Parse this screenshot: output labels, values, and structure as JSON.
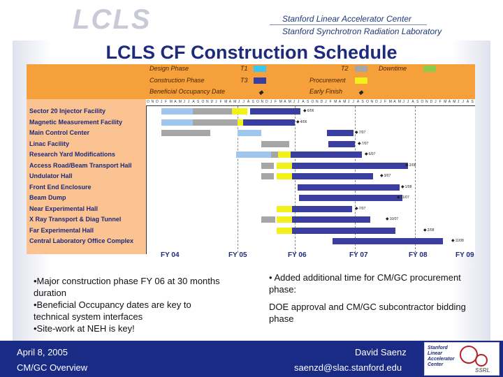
{
  "header": {
    "logo_text": "LCLS",
    "lab_line1": "Stanford Linear Accelerator Center",
    "lab_line2": "Stanford Synchrotron Radiation Laboratory"
  },
  "title": "LCLS CF Construction Schedule",
  "legend": {
    "design_phase": "Design Phase",
    "construction_phase": "Construction Phase",
    "beneficial_occupancy": "Beneficial Occupancy Date",
    "t1": "T1",
    "t3": "T3",
    "t2": "T2",
    "procurement": "Procurement",
    "early_finish": "Early Finish",
    "downtime": "Downtime",
    "colors": {
      "t1": "#36c8f0",
      "t3": "#3a3ea0",
      "t2": "#a6a6a6",
      "procurement": "#f2f21a",
      "downtime": "#8ccc4a",
      "design": "#9ec6ee",
      "construction": "#3a3ea0"
    }
  },
  "tasks": [
    "Sector 20 Injector Facility",
    "Magnetic Measurement Facility",
    "Main Control Center",
    "Linac Facility",
    "Research Yard Modifications",
    "Access Road/Beam Transport Hall",
    "Undulator Hall",
    "Front End Enclosure",
    "Beam Dump",
    "Near Experimental Hall",
    "X Ray Transport & Diag Tunnel",
    "Far Experimental Hall",
    "Central Laboratory Office Complex"
  ],
  "milestones": [
    "6/06",
    "4/06",
    "7/07",
    "7/07",
    "6/07",
    "2/08",
    "3/07",
    "1/08",
    "11/07",
    "7/07",
    "10/07",
    "2/08",
    "11/08"
  ],
  "fiscal_years": [
    "FY 04",
    "FY 05",
    "FY 06",
    "FY 07",
    "FY 08",
    "FY 09"
  ],
  "notes_left": [
    "•Major construction phase FY 06 at 30 months duration",
    "•Beneficial Occupancy dates are key to technical system interfaces",
    "•Site-work at NEH is key!"
  ],
  "notes_right": [
    "• Added additional time for CM/GC procurement phase:",
    "DOE approval and CM/GC subcontractor bidding phase"
  ],
  "footer": {
    "date": "April 8, 2005",
    "topic": "CM/GC Overview",
    "name": "David Saenz",
    "email": "saenzd@slac.stanford.edu",
    "logo_lines": [
      "Stanford",
      "Linear",
      "Accelerator",
      "Center"
    ],
    "logo_sub": "SSRL"
  }
}
